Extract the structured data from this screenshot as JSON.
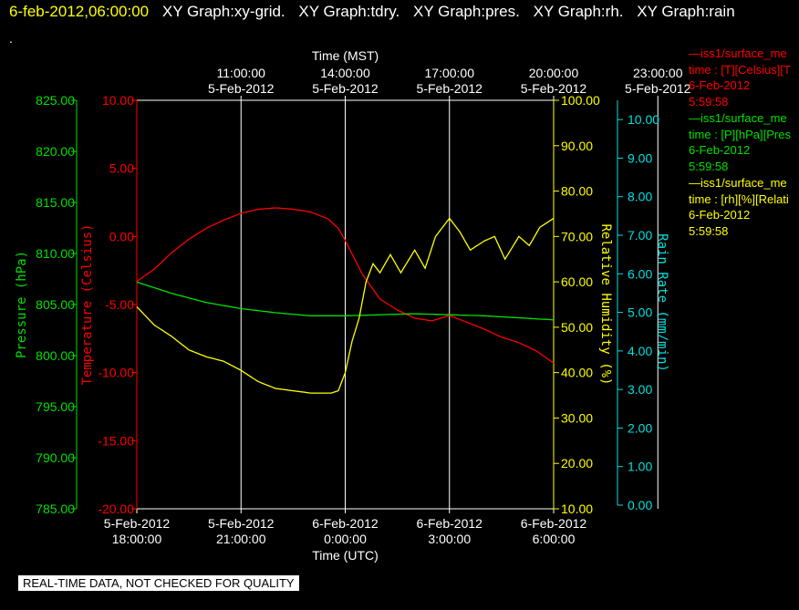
{
  "header": {
    "date_time": "6-feb-2012,06:00:00",
    "tabs": [
      "XY Graph:xy-grid.",
      "XY Graph:tdry.",
      "XY Graph:pres.",
      "XY Graph:rh.",
      "XY Graph:rain"
    ],
    "dot": "."
  },
  "legend": [
    {
      "lines": [
        "—iss1/surface_me",
        "time : [T][Celsius][T",
        "6-Feb-2012",
        "5:59:58"
      ],
      "color": "#ff0000"
    },
    {
      "lines": [
        "—iss1/surface_me",
        "time : [P][hPa][Pres",
        "6-Feb-2012",
        "5:59:58"
      ],
      "color": "#00e000"
    },
    {
      "lines": [
        "—iss1/surface_me",
        "time : [rh][%][Relati",
        "6-Feb-2012",
        "5:59:58"
      ],
      "color": "#ffff00"
    }
  ],
  "footer_note": "REAL-TIME DATA, NOT CHECKED FOR QUALITY",
  "chart_data": {
    "type": "line",
    "top_axis": {
      "title": "Time (MST)",
      "ticks": [
        {
          "x": 3,
          "l1": "11:00:00",
          "l2": "5-Feb-2012"
        },
        {
          "x": 6,
          "l1": "14:00:00",
          "l2": "5-Feb-2012"
        },
        {
          "x": 9,
          "l1": "17:00:00",
          "l2": "5-Feb-2012"
        },
        {
          "x": 12,
          "l1": "20:00:00",
          "l2": "5-Feb-2012"
        },
        {
          "x": 15,
          "l1": "23:00:00",
          "l2": "5-Feb-2012"
        }
      ]
    },
    "bottom_axis": {
      "title": "Time (UTC)",
      "ticks": [
        {
          "x": 0,
          "l1": "5-Feb-2012",
          "l2": "18:00:00"
        },
        {
          "x": 3,
          "l1": "5-Feb-2012",
          "l2": "21:00:00"
        },
        {
          "x": 6,
          "l1": "6-Feb-2012",
          "l2": "0:00:00"
        },
        {
          "x": 9,
          "l1": "6-Feb-2012",
          "l2": "3:00:00"
        },
        {
          "x": 12,
          "l1": "6-Feb-2012",
          "l2": "6:00:00"
        }
      ]
    },
    "y_axes": [
      {
        "id": "pressure",
        "label": "Pressure (hPa)",
        "color": "#00e000",
        "min": 785,
        "max": 825,
        "step": 5,
        "ticks": [
          "785.00",
          "790.00",
          "795.00",
          "800.00",
          "805.00",
          "810.00",
          "815.00",
          "820.00",
          "825.00"
        ]
      },
      {
        "id": "temperature",
        "label": "Temperature (Celsius)",
        "color": "#ff0000",
        "min": -20,
        "max": 10,
        "step": 5,
        "ticks": [
          "-20.00",
          "-15.00",
          "-10.00",
          "-5.00",
          "0.00",
          "5.00",
          "10.00"
        ]
      },
      {
        "id": "rh",
        "label": "Relative Humidity (%)",
        "color": "#ffff00",
        "min": 10,
        "max": 100,
        "step": 10,
        "ticks": [
          "10.00",
          "20.00",
          "30.00",
          "40.00",
          "50.00",
          "60.00",
          "70.00",
          "80.00",
          "90.00",
          "100.00"
        ]
      },
      {
        "id": "rain",
        "label": "Rain Rate (mm/min)",
        "color": "#00e0e0",
        "min": 0,
        "max": 10.5,
        "step": 1,
        "ticks": [
          "0.00",
          "1.00",
          "2.00",
          "3.00",
          "4.00",
          "5.00",
          "6.00",
          "7.00",
          "8.00",
          "9.00",
          "10.00"
        ]
      }
    ],
    "x_range": [
      0,
      12
    ],
    "x_unit": "hours after 5-Feb-2012 18:00:00 UTC",
    "series": [
      {
        "axis": "temperature",
        "color": "#ff0000",
        "x": [
          0,
          0.5,
          1,
          1.5,
          2,
          2.5,
          3,
          3.5,
          4,
          4.5,
          5,
          5.5,
          5.8,
          6,
          6.2,
          6.5,
          7,
          7.5,
          8,
          8.5,
          9,
          9.5,
          10,
          10.5,
          11,
          11.5,
          12
        ],
        "y": [
          -3.3,
          -2.4,
          -1.2,
          -0.2,
          0.6,
          1.2,
          1.7,
          2.0,
          2.1,
          2.0,
          1.8,
          1.3,
          0.6,
          -0.3,
          -1.3,
          -2.8,
          -4.6,
          -5.4,
          -6.0,
          -6.2,
          -5.8,
          -6.3,
          -6.8,
          -7.4,
          -7.8,
          -8.4,
          -9.3
        ]
      },
      {
        "axis": "pressure",
        "color": "#00e000",
        "x": [
          0,
          1,
          2,
          3,
          4,
          5,
          6,
          7,
          8,
          9,
          10,
          11,
          12
        ],
        "y": [
          807.2,
          806.1,
          805.2,
          804.6,
          804.2,
          803.9,
          803.9,
          804.0,
          804.1,
          804.0,
          803.9,
          803.7,
          803.5
        ]
      },
      {
        "axis": "rh",
        "color": "#ffff00",
        "x": [
          0,
          0.5,
          1,
          1.5,
          2,
          2.5,
          3,
          3.5,
          4,
          4.5,
          5,
          5.3,
          5.6,
          5.8,
          6,
          6.2,
          6.4,
          6.6,
          6.8,
          7,
          7.3,
          7.6,
          8,
          8.3,
          8.6,
          9,
          9.3,
          9.6,
          10,
          10.3,
          10.6,
          11,
          11.3,
          11.6,
          12
        ],
        "y": [
          54.5,
          50.5,
          48,
          45,
          43.5,
          42.5,
          40.5,
          38,
          36.5,
          36,
          35.5,
          35.5,
          35.5,
          36,
          40,
          47,
          52,
          60,
          64,
          62,
          66,
          62,
          67,
          63,
          70,
          74,
          71,
          67,
          69,
          70,
          65,
          70,
          68,
          72,
          74
        ]
      },
      {
        "axis": "rain",
        "color": "#00e0e0",
        "x": [],
        "y": []
      }
    ]
  }
}
